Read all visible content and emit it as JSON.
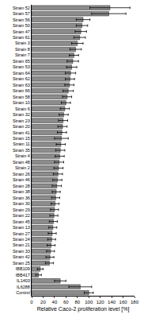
{
  "chart_data": {
    "type": "bar",
    "orientation": "horizontal",
    "x_label": "Relative Caco-2 proliferation level [%]",
    "categories": [
      "Strain 52",
      "Strain 57",
      "Strain 56",
      "Strain 50",
      "Strain 47",
      "Strain 61",
      "Strain 3",
      "Strain 8",
      "Strain 7",
      "Strain 65",
      "Strain 53",
      "Strain 64",
      "Strain 62",
      "Strain 63",
      "Strain 66",
      "Strain 58",
      "Strain 10",
      "Strain 6",
      "Strain 32",
      "Strain 23",
      "Strain 20",
      "Strain 41",
      "Strain 15",
      "Strain 11",
      "Strain 35",
      "Strain 4",
      "Strain 48",
      "Strain 2",
      "Strain 26",
      "Strain 46",
      "Strain 28",
      "Strain 38",
      "Strain 36",
      "Strain 30",
      "Strain 29",
      "Strain 22",
      "Strain 45",
      "Strain 13",
      "Strain 27",
      "Strain 24",
      "Strain 21",
      "Strain 33",
      "Strain 42",
      "Strain 25",
      "IBB109",
      "IBB417",
      "IL1403",
      "IL6288",
      "Control"
    ],
    "values": [
      137,
      135,
      90,
      88,
      86,
      84,
      80,
      77,
      74,
      72,
      70,
      68,
      67,
      66,
      64,
      62,
      60,
      58,
      56,
      55,
      54,
      53,
      52,
      51,
      50,
      49,
      48,
      47,
      46,
      45,
      44,
      43,
      42,
      41,
      40,
      39,
      38,
      37,
      36,
      35,
      34,
      33,
      32,
      31,
      15,
      12,
      50,
      85,
      100
    ],
    "errors": [
      35,
      30,
      12,
      10,
      10,
      10,
      10,
      10,
      8,
      10,
      9,
      9,
      8,
      8,
      9,
      8,
      8,
      8,
      8,
      8,
      8,
      8,
      12,
      8,
      8,
      8,
      8,
      8,
      8,
      8,
      8,
      7,
      7,
      7,
      7,
      7,
      7,
      7,
      7,
      7,
      7,
      7,
      7,
      7,
      5,
      5,
      10,
      20,
      8
    ],
    "color": "#8c8c8c",
    "xlim": [
      0,
      180
    ],
    "xticks": [
      0,
      20,
      40,
      60,
      80,
      100,
      120,
      140,
      160,
      180
    ],
    "grid": false
  }
}
